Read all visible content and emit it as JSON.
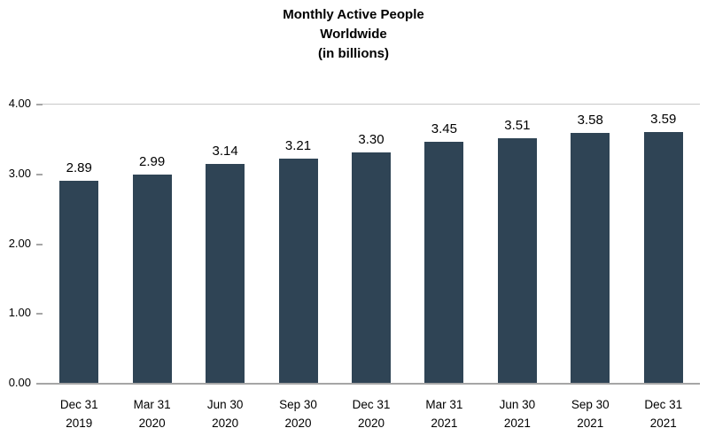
{
  "title_lines": [
    "Monthly Active People",
    "Worldwide",
    "(in billions)"
  ],
  "chart_data": {
    "type": "bar",
    "title": "Monthly Active People Worldwide (in billions)",
    "categories": [
      [
        "Dec 31",
        "2019"
      ],
      [
        "Mar 31",
        "2020"
      ],
      [
        "Jun 30",
        "2020"
      ],
      [
        "Sep 30",
        "2020"
      ],
      [
        "Dec 31",
        "2020"
      ],
      [
        "Mar 31",
        "2021"
      ],
      [
        "Jun 30",
        "2021"
      ],
      [
        "Sep 30",
        "2021"
      ],
      [
        "Dec 31",
        "2021"
      ]
    ],
    "values": [
      2.89,
      2.99,
      3.14,
      3.21,
      3.3,
      3.45,
      3.51,
      3.58,
      3.59
    ],
    "value_labels": [
      "2.89",
      "2.99",
      "3.14",
      "3.21",
      "3.30",
      "3.45",
      "3.51",
      "3.58",
      "3.59"
    ],
    "xlabel": "",
    "ylabel": "",
    "ylim": [
      0,
      4
    ],
    "yticks": [
      "0.00",
      "1.00",
      "2.00",
      "3.00",
      "4.00"
    ],
    "grid": "top-line-only",
    "legend": "none",
    "bar_color": "#2f4455",
    "axis_color": "#a6a6a6"
  }
}
